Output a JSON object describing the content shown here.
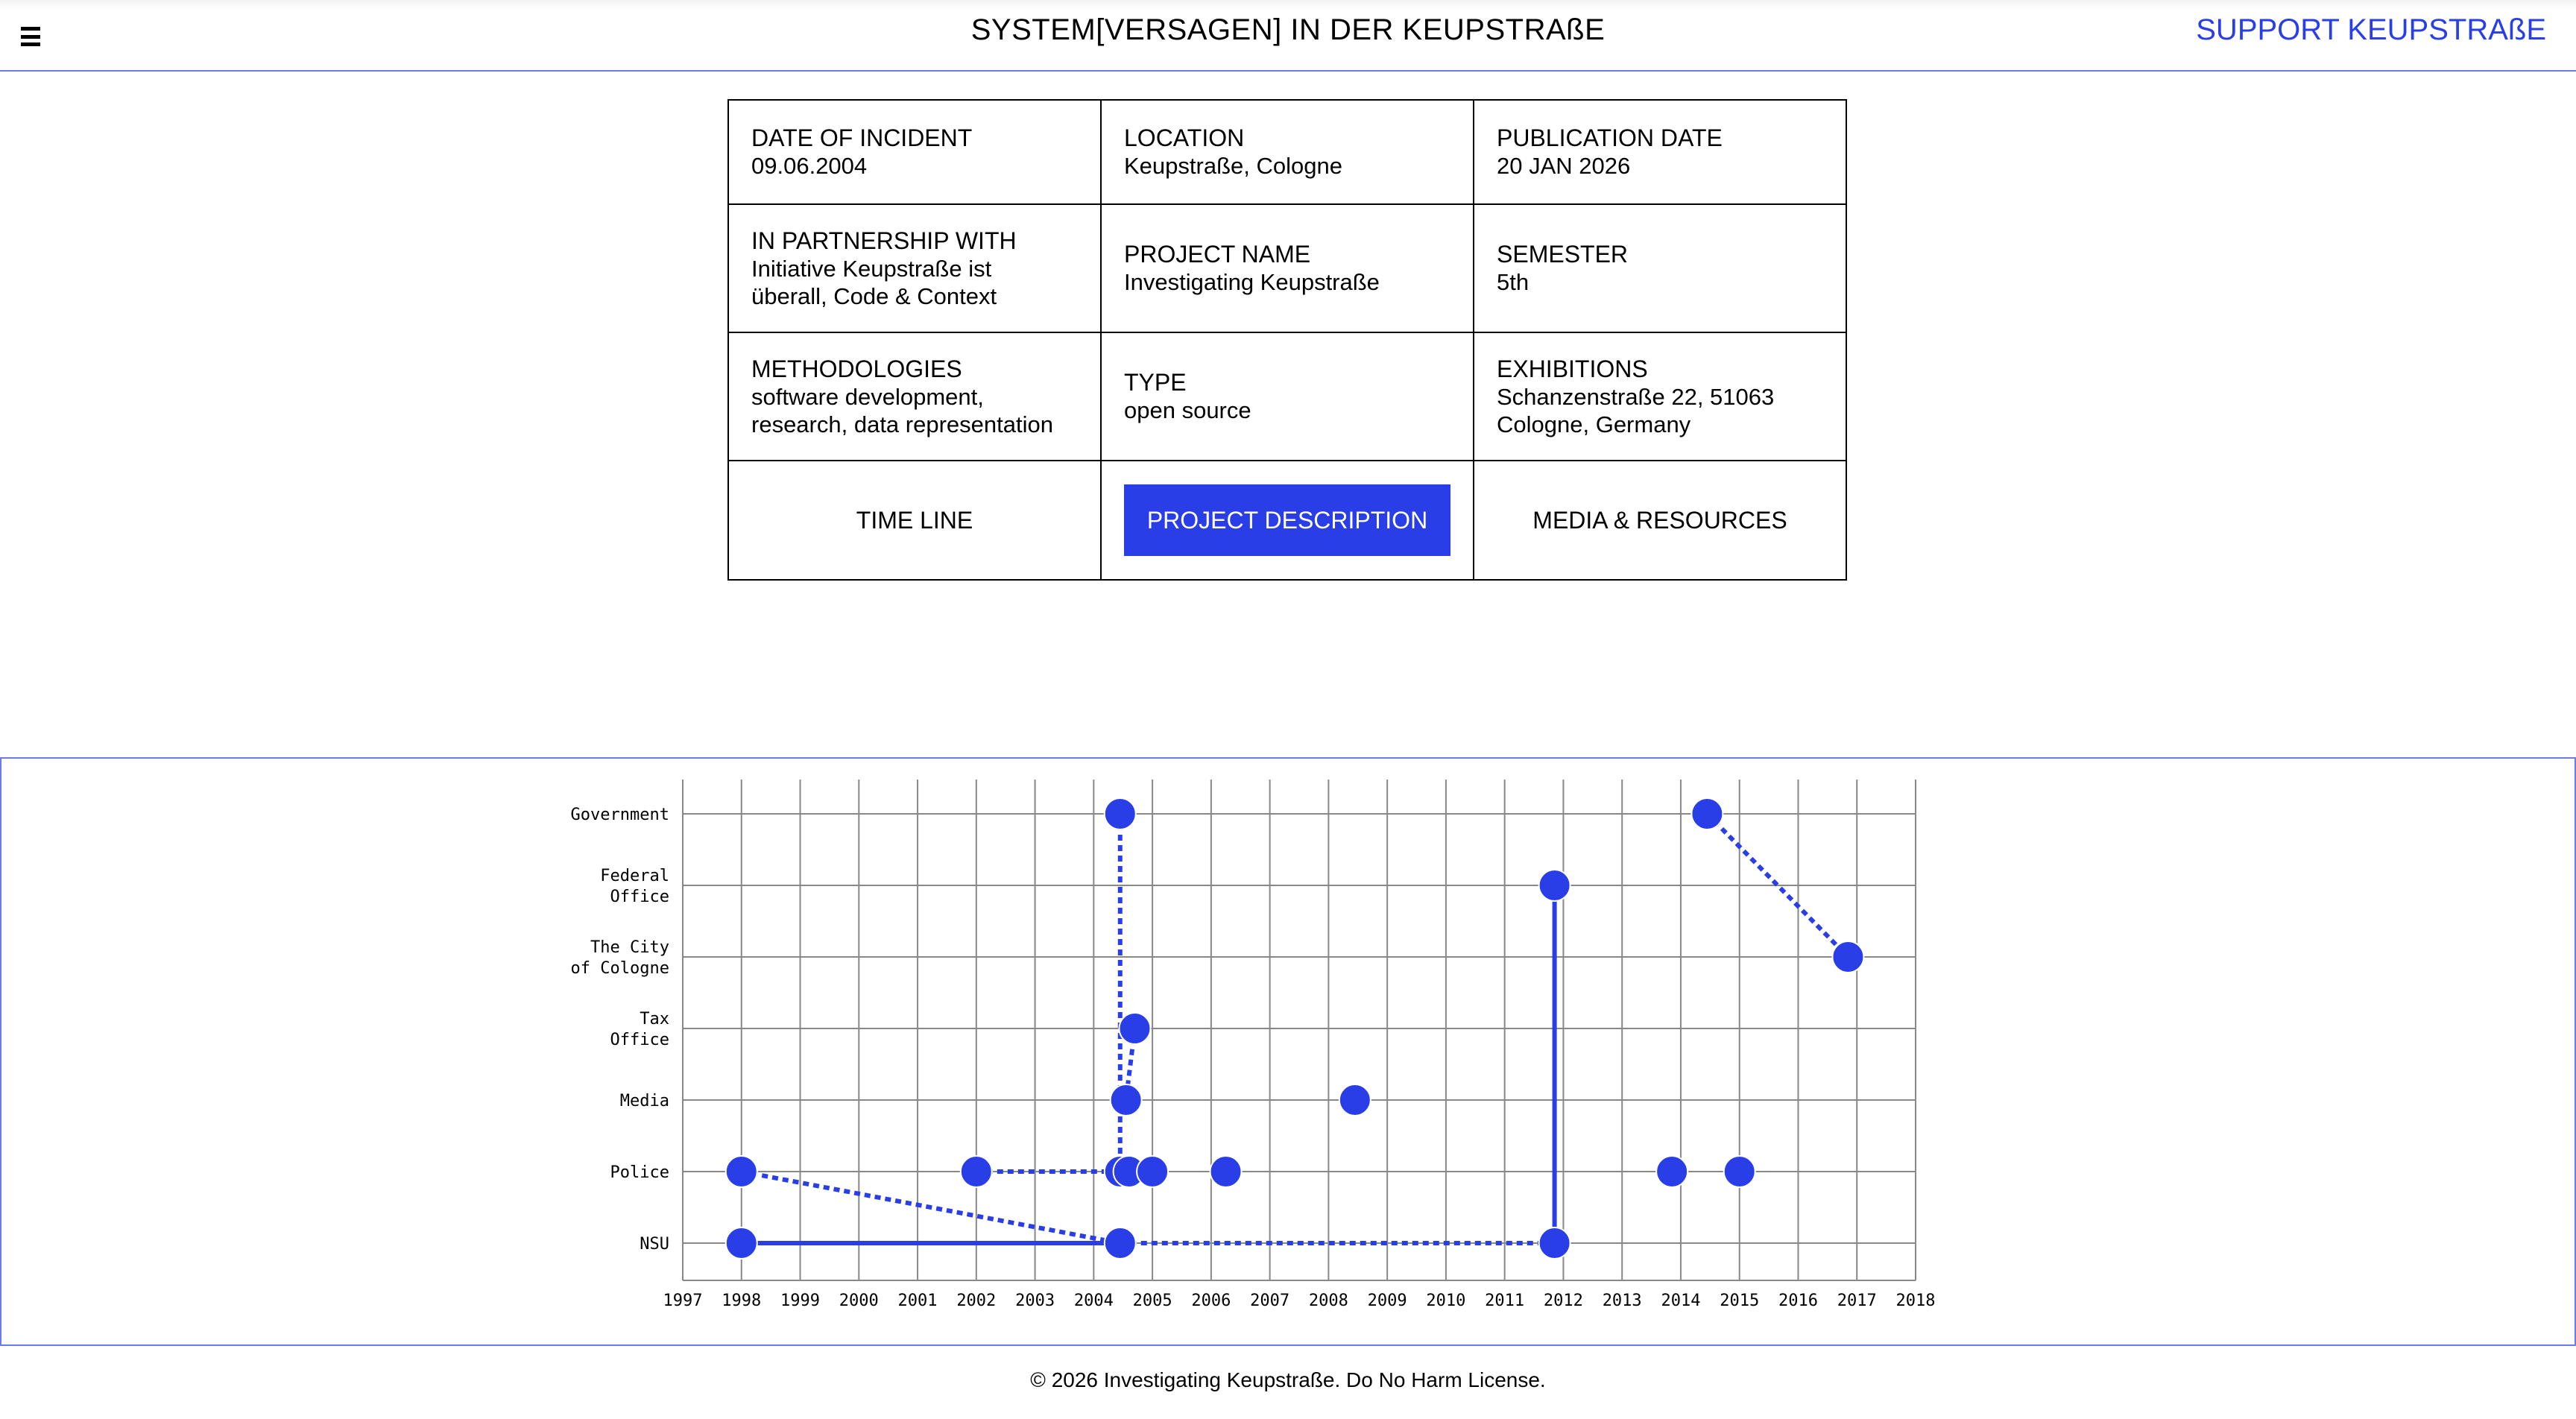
{
  "header": {
    "title": "SYSTEM[VERSAGEN] IN DER KEUPSTRAßE",
    "support_link": "SUPPORT KEUPSTRAßE",
    "menu_icon": "hamburger-menu-icon"
  },
  "info": {
    "date_of_incident": {
      "label": "DATE OF INCIDENT",
      "value": "09.06.2004"
    },
    "location": {
      "label": "LOCATION",
      "value": "Keupstraße, Cologne"
    },
    "publication_date": {
      "label": "PUBLICATION DATE",
      "value": "20 JAN 2026"
    },
    "partnership": {
      "label": "IN PARTNERSHIP WITH",
      "value": "Initiative Keupstraße ist\nüberall, Code & Context"
    },
    "project_name": {
      "label": "PROJECT NAME",
      "value": "Investigating Keupstraße"
    },
    "semester": {
      "label": "SEMESTER",
      "value": "5th"
    },
    "methodologies": {
      "label": "METHODOLOGIES",
      "value": "software development,\nresearch, data representation"
    },
    "type": {
      "label": "TYPE",
      "value": "open source"
    },
    "exhibitions": {
      "label": "EXHIBITIONS",
      "value": "Schanzenstraße 22, 51063\nCologne, Germany"
    }
  },
  "tabs": [
    {
      "label": "TIME LINE",
      "active": false
    },
    {
      "label": "PROJECT DESCRIPTION",
      "active": true
    },
    {
      "label": "MEDIA & RESOURCES",
      "active": false
    }
  ],
  "colors": {
    "accent": "#2a3ee8",
    "border": "#6b7be8",
    "grid": "#888888"
  },
  "chart_data": {
    "type": "scatter",
    "categories": [
      "Government",
      "Federal\nOffice",
      "The City\nof Cologne",
      "Tax\nOffice",
      "Media",
      "Police",
      "NSU"
    ],
    "x_ticks": [
      1997,
      1998,
      1999,
      2000,
      2001,
      2002,
      2003,
      2004,
      2005,
      2006,
      2007,
      2008,
      2009,
      2010,
      2011,
      2012,
      2013,
      2014,
      2015,
      2016,
      2017,
      2018
    ],
    "xlim": [
      1997,
      2018
    ],
    "grid": true,
    "points": [
      {
        "x": 2004.45,
        "y": "Government"
      },
      {
        "x": 2014.45,
        "y": "Government"
      },
      {
        "x": 2011.85,
        "y": "Federal\nOffice"
      },
      {
        "x": 2016.85,
        "y": "The City\nof Cologne"
      },
      {
        "x": 2004.7,
        "y": "Tax\nOffice"
      },
      {
        "x": 2004.55,
        "y": "Media"
      },
      {
        "x": 2008.45,
        "y": "Media"
      },
      {
        "x": 1998.0,
        "y": "Police"
      },
      {
        "x": 2002.0,
        "y": "Police"
      },
      {
        "x": 2004.45,
        "y": "Police"
      },
      {
        "x": 2004.6,
        "y": "Police"
      },
      {
        "x": 2005.0,
        "y": "Police"
      },
      {
        "x": 2006.25,
        "y": "Police"
      },
      {
        "x": 2013.85,
        "y": "Police"
      },
      {
        "x": 2015.0,
        "y": "Police"
      },
      {
        "x": 1998.0,
        "y": "NSU"
      },
      {
        "x": 2004.45,
        "y": "NSU"
      },
      {
        "x": 2011.85,
        "y": "NSU"
      }
    ],
    "links": [
      {
        "from": [
          1998.0,
          "NSU"
        ],
        "to": [
          2004.45,
          "NSU"
        ],
        "style": "solid"
      },
      {
        "from": [
          2004.45,
          "NSU"
        ],
        "to": [
          2011.85,
          "NSU"
        ],
        "style": "dotted"
      },
      {
        "from": [
          2011.85,
          "NSU"
        ],
        "to": [
          2011.85,
          "Federal\nOffice"
        ],
        "style": "solid"
      },
      {
        "from": [
          1998.0,
          "Police"
        ],
        "to": [
          2004.45,
          "NSU"
        ],
        "style": "dotted"
      },
      {
        "from": [
          2002.0,
          "Police"
        ],
        "to": [
          2004.45,
          "Police"
        ],
        "style": "dotted"
      },
      {
        "from": [
          2004.45,
          "Government"
        ],
        "to": [
          2004.45,
          "Police"
        ],
        "style": "dotted"
      },
      {
        "from": [
          2004.7,
          "Tax\nOffice"
        ],
        "to": [
          2004.55,
          "Media"
        ],
        "style": "dotted"
      },
      {
        "from": [
          2014.45,
          "Government"
        ],
        "to": [
          2016.85,
          "The City\nof Cologne"
        ],
        "style": "dotted"
      }
    ]
  },
  "footer": {
    "text": "© 2026 Investigating Keupstraße. Do No Harm License."
  }
}
